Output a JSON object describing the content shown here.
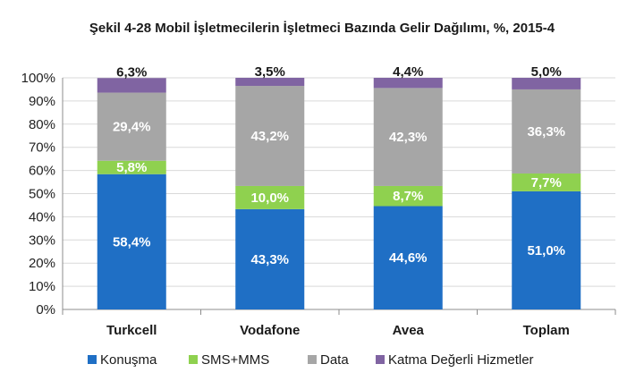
{
  "chart_data": {
    "type": "bar",
    "stacked": true,
    "title": "Şekil 4-28 Mobil İşletmecilerin İşletmeci Bazında Gelir Dağılımı, %, 2015-4",
    "categories": [
      "Turkcell",
      "Vodafone",
      "Avea",
      "Toplam"
    ],
    "ylim": [
      0,
      100
    ],
    "yticks": [
      "0%",
      "10%",
      "20%",
      "30%",
      "40%",
      "50%",
      "60%",
      "70%",
      "80%",
      "90%",
      "100%"
    ],
    "grid": true,
    "legend_position": "bottom",
    "series": [
      {
        "name": "Konuşma",
        "color": "#1f6fc5",
        "values": [
          58.4,
          43.3,
          44.6,
          51.0
        ],
        "labels": [
          "58,4%",
          "43,3%",
          "44,6%",
          "51,0%"
        ],
        "label_color": "#ffffff"
      },
      {
        "name": "SMS+MMS",
        "color": "#8fd14f",
        "values": [
          5.8,
          10.0,
          8.7,
          7.7
        ],
        "labels": [
          "5,8%",
          "10,0%",
          "8,7%",
          "7,7%"
        ],
        "label_color": "#ffffff"
      },
      {
        "name": "Data",
        "color": "#a6a6a6",
        "values": [
          29.4,
          43.2,
          42.3,
          36.3
        ],
        "labels": [
          "29,4%",
          "43,2%",
          "42,3%",
          "36,3%"
        ],
        "label_color": "#ffffff"
      },
      {
        "name": "Katma Değerli Hizmetler",
        "color": "#8064a2",
        "values": [
          6.3,
          3.5,
          4.4,
          5.0
        ],
        "labels": [
          "6,3%",
          "3,5%",
          "4,4%",
          "5,0%"
        ],
        "label_color": "#1a1a1a"
      }
    ]
  }
}
